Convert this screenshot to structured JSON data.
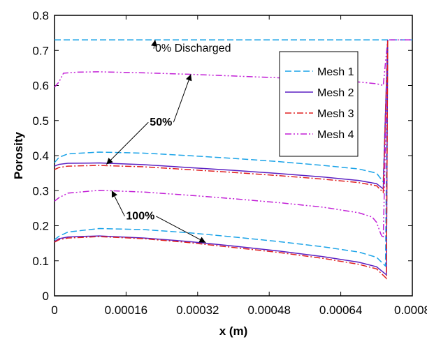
{
  "chart_data": {
    "type": "line",
    "title": "",
    "xlabel": "x (m)",
    "ylabel": "Porosity",
    "xlim": [
      0,
      0.0008
    ],
    "ylim": [
      0,
      0.8
    ],
    "xticks": [
      0,
      0.00016,
      0.00032,
      0.00048,
      0.00064,
      0.0008
    ],
    "xtick_labels": [
      "0",
      "0.00016",
      "0.00032",
      "0.00048",
      "0.00064",
      "0.0008"
    ],
    "yticks": [
      0,
      0.1,
      0.2,
      0.3,
      0.4,
      0.5,
      0.6,
      0.7,
      0.8
    ],
    "ytick_labels": [
      "0",
      "0.1",
      "0.2",
      "0.3",
      "0.4",
      "0.5",
      "0.6",
      "0.7",
      "0.8"
    ],
    "grid": false,
    "legend_position": "top-right",
    "series": [
      {
        "name": "Mesh 1",
        "color": "#1aa3e8",
        "dash": "dashed"
      },
      {
        "name": "Mesh 2",
        "color": "#5a1fc2",
        "dash": "solid"
      },
      {
        "name": "Mesh 3",
        "color": "#e02020",
        "dash": "dashdot"
      },
      {
        "name": "Mesh 4",
        "color": "#c21fd6",
        "dash": "dashdotdot"
      }
    ],
    "curves": [
      {
        "group": "0% Discharged",
        "series": "Mesh 1",
        "points": [
          [
            0,
            0.73
          ],
          [
            0.000745,
            0.73
          ],
          [
            0.0008,
            0.73
          ]
        ]
      },
      {
        "group": "50%",
        "series": "Mesh 4",
        "points": [
          [
            0,
            0.595
          ],
          [
            1e-05,
            0.61
          ],
          [
            2e-05,
            0.635
          ],
          [
            5e-05,
            0.638
          ],
          [
            0.0001,
            0.639
          ],
          [
            0.0002,
            0.636
          ],
          [
            0.0003,
            0.632
          ],
          [
            0.0004,
            0.627
          ],
          [
            0.0005,
            0.622
          ],
          [
            0.0006,
            0.616
          ],
          [
            0.00068,
            0.61
          ],
          [
            0.00072,
            0.605
          ],
          [
            0.000735,
            0.6
          ],
          [
            0.000745,
            0.73
          ],
          [
            0.000752,
            0.73
          ],
          [
            0.0008,
            0.73
          ]
        ]
      },
      {
        "group": "50%",
        "series": "Mesh 1",
        "points": [
          [
            0,
            0.38
          ],
          [
            1e-05,
            0.395
          ],
          [
            3e-05,
            0.405
          ],
          [
            0.0001,
            0.41
          ],
          [
            0.0002,
            0.407
          ],
          [
            0.0003,
            0.4
          ],
          [
            0.0004,
            0.392
          ],
          [
            0.0005,
            0.383
          ],
          [
            0.0006,
            0.372
          ],
          [
            0.00068,
            0.362
          ],
          [
            0.00072,
            0.35
          ],
          [
            0.000735,
            0.325
          ],
          [
            0.000745,
            0.73
          ]
        ]
      },
      {
        "group": "50%",
        "series": "Mesh 2",
        "points": [
          [
            0,
            0.37
          ],
          [
            1e-05,
            0.375
          ],
          [
            3e-05,
            0.378
          ],
          [
            0.0001,
            0.379
          ],
          [
            0.0002,
            0.374
          ],
          [
            0.0003,
            0.366
          ],
          [
            0.0004,
            0.358
          ],
          [
            0.0005,
            0.349
          ],
          [
            0.0006,
            0.339
          ],
          [
            0.00068,
            0.329
          ],
          [
            0.00072,
            0.32
          ],
          [
            0.000735,
            0.305
          ],
          [
            0.000745,
            0.73
          ]
        ]
      },
      {
        "group": "50%",
        "series": "Mesh 3",
        "points": [
          [
            0,
            0.36
          ],
          [
            1e-05,
            0.366
          ],
          [
            3e-05,
            0.37
          ],
          [
            0.0001,
            0.372
          ],
          [
            0.0002,
            0.368
          ],
          [
            0.0003,
            0.36
          ],
          [
            0.0004,
            0.352
          ],
          [
            0.0005,
            0.343
          ],
          [
            0.0006,
            0.333
          ],
          [
            0.00068,
            0.323
          ],
          [
            0.00072,
            0.314
          ],
          [
            0.000735,
            0.295
          ],
          [
            0.000745,
            0.73
          ]
        ]
      },
      {
        "group": "100%",
        "series": "Mesh 4",
        "points": [
          [
            0,
            0.27
          ],
          [
            1e-05,
            0.28
          ],
          [
            3e-05,
            0.293
          ],
          [
            0.0001,
            0.301
          ],
          [
            0.0002,
            0.296
          ],
          [
            0.0003,
            0.287
          ],
          [
            0.0004,
            0.277
          ],
          [
            0.0005,
            0.266
          ],
          [
            0.0006,
            0.253
          ],
          [
            0.00068,
            0.237
          ],
          [
            0.00071,
            0.225
          ],
          [
            0.00072,
            0.21
          ],
          [
            0.00073,
            0.175
          ],
          [
            0.000735,
            0.165
          ],
          [
            0.000745,
            0.73
          ]
        ]
      },
      {
        "group": "100%",
        "series": "Mesh 1",
        "points": [
          [
            0,
            0.16
          ],
          [
            1e-05,
            0.17
          ],
          [
            3e-05,
            0.182
          ],
          [
            0.0001,
            0.192
          ],
          [
            0.0002,
            0.189
          ],
          [
            0.0003,
            0.18
          ],
          [
            0.0004,
            0.168
          ],
          [
            0.0005,
            0.155
          ],
          [
            0.0006,
            0.14
          ],
          [
            0.00068,
            0.125
          ],
          [
            0.00072,
            0.11
          ],
          [
            0.00074,
            0.085
          ],
          [
            0.000745,
            0.73
          ]
        ]
      },
      {
        "group": "100%",
        "series": "Mesh 2",
        "points": [
          [
            0,
            0.155
          ],
          [
            1e-05,
            0.163
          ],
          [
            3e-05,
            0.168
          ],
          [
            0.0001,
            0.171
          ],
          [
            0.0002,
            0.165
          ],
          [
            0.0003,
            0.155
          ],
          [
            0.0004,
            0.142
          ],
          [
            0.0005,
            0.128
          ],
          [
            0.0006,
            0.112
          ],
          [
            0.00068,
            0.096
          ],
          [
            0.00072,
            0.083
          ],
          [
            0.000742,
            0.06
          ],
          [
            0.000745,
            0.73
          ]
        ]
      },
      {
        "group": "100%",
        "series": "Mesh 3",
        "points": [
          [
            0,
            0.153
          ],
          [
            1e-05,
            0.16
          ],
          [
            3e-05,
            0.165
          ],
          [
            0.0001,
            0.169
          ],
          [
            0.0002,
            0.163
          ],
          [
            0.0003,
            0.152
          ],
          [
            0.0004,
            0.138
          ],
          [
            0.0005,
            0.124
          ],
          [
            0.0006,
            0.107
          ],
          [
            0.00068,
            0.09
          ],
          [
            0.00072,
            0.077
          ],
          [
            0.000742,
            0.05
          ],
          [
            0.000745,
            0.73
          ]
        ]
      }
    ],
    "annotations": [
      {
        "text": "0% Discharged",
        "bold": false,
        "text_at": [
          0.000225,
          0.708
        ],
        "arrows": [
          [
            0.000225,
            0.73
          ]
        ]
      },
      {
        "text": "50%",
        "bold": true,
        "text_at": [
          0.000238,
          0.498
        ],
        "arrows": [
          [
            0.000305,
            0.632
          ],
          [
            0.000116,
            0.375
          ]
        ]
      },
      {
        "text": "100%",
        "bold": true,
        "text_at": [
          0.000192,
          0.23
        ],
        "arrows": [
          [
            0.000128,
            0.3
          ],
          [
            0.000338,
            0.152
          ]
        ]
      }
    ]
  }
}
